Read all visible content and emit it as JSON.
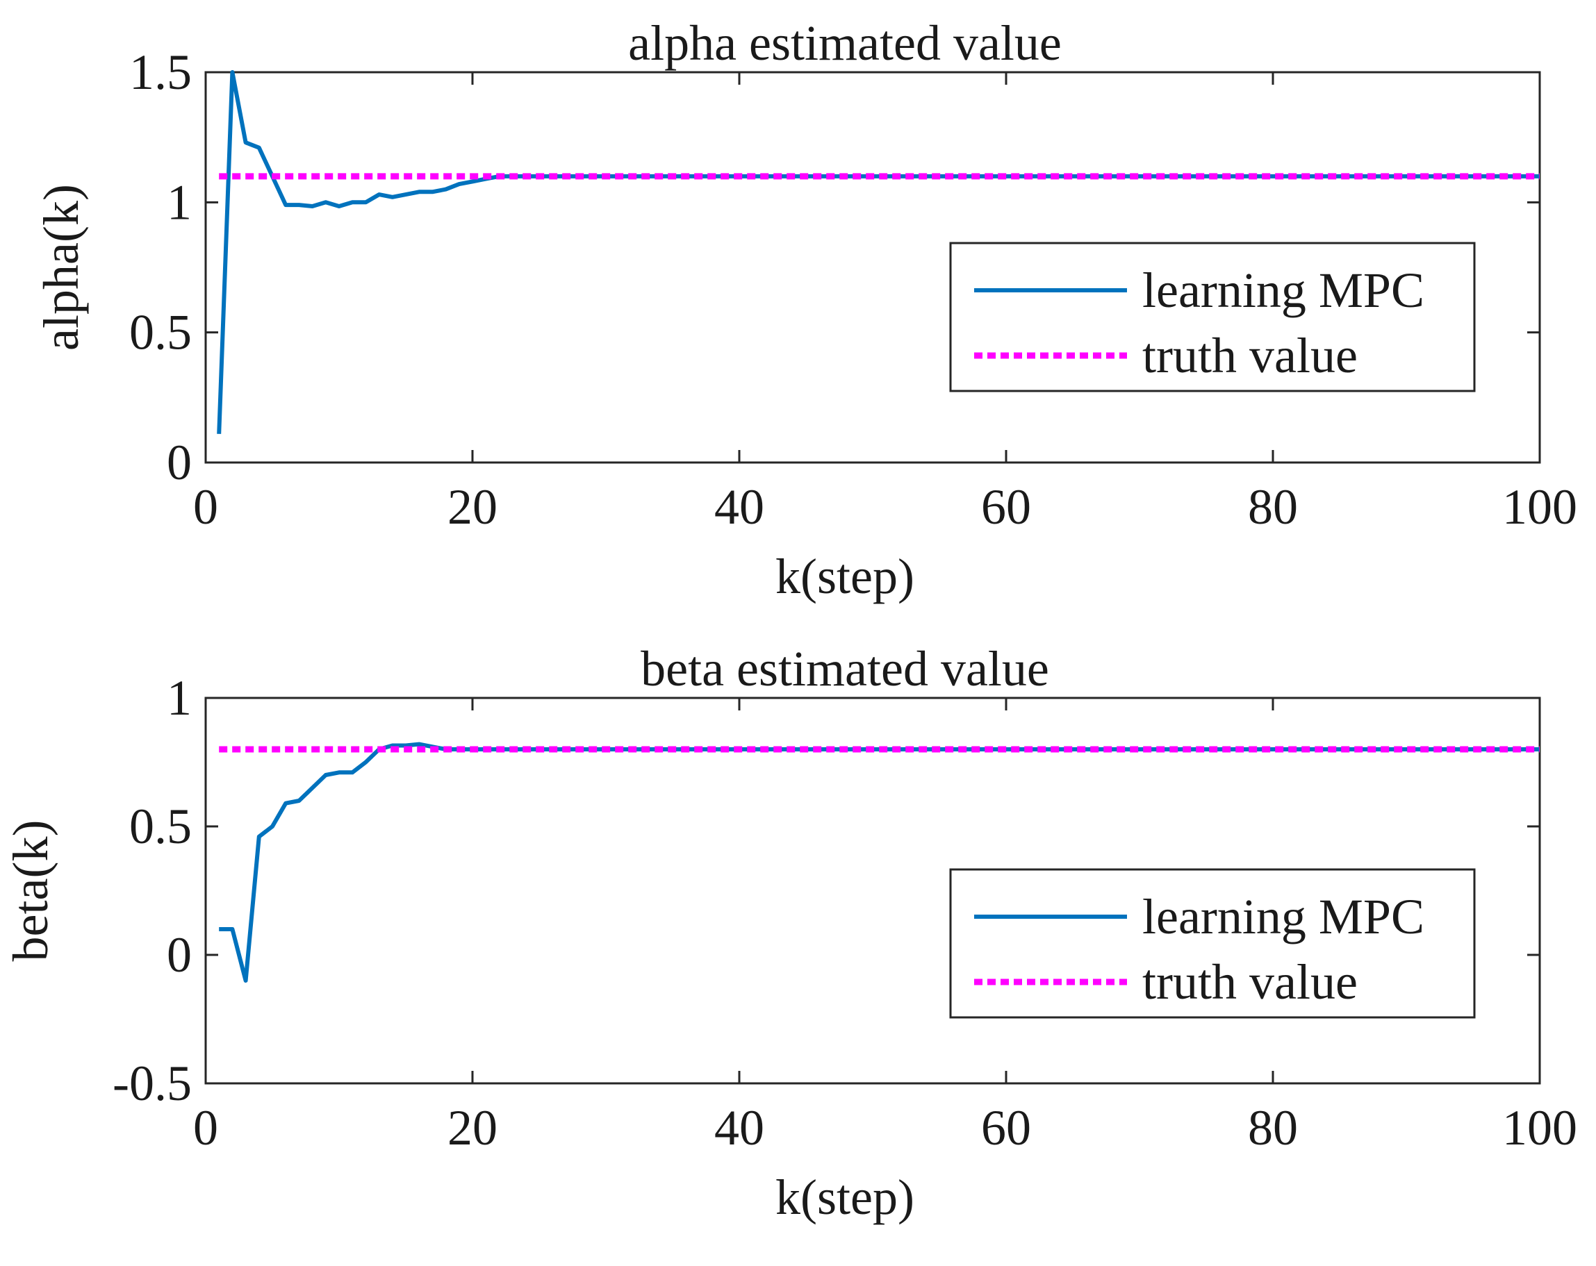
{
  "chart_data": [
    {
      "type": "line",
      "title": "alpha estimated value",
      "xlabel": "k(step)",
      "ylabel": "alpha(k)",
      "xlim": [
        0,
        100
      ],
      "ylim": [
        0,
        1.5
      ],
      "xticks": [
        0,
        20,
        40,
        60,
        80,
        100
      ],
      "xtick_labels": [
        "0",
        "20",
        "40",
        "60",
        "80",
        "100"
      ],
      "yticks": [
        0,
        0.5,
        1,
        1.5
      ],
      "ytick_labels": [
        "0",
        "0.5",
        "1",
        "1.5"
      ],
      "legend_position": "center-right",
      "series": [
        {
          "name": "learning MPC",
          "color": "#0072BD",
          "style": "solid",
          "x": [
            1,
            2,
            3,
            4,
            5,
            6,
            7,
            8,
            9,
            10,
            11,
            12,
            13,
            14,
            15,
            16,
            17,
            18,
            19,
            20,
            21,
            22,
            23,
            24,
            25,
            30,
            40,
            50,
            60,
            70,
            80,
            90,
            100
          ],
          "y": [
            0.11,
            1.5,
            1.23,
            1.21,
            1.1,
            0.99,
            0.99,
            0.985,
            1.0,
            0.985,
            1.0,
            1.0,
            1.03,
            1.02,
            1.03,
            1.04,
            1.04,
            1.05,
            1.07,
            1.08,
            1.09,
            1.1,
            1.1,
            1.1,
            1.1,
            1.1,
            1.1,
            1.1,
            1.1,
            1.1,
            1.1,
            1.1,
            1.1
          ]
        },
        {
          "name": "truth value",
          "color": "#FF00FF",
          "style": "dotted",
          "x": [
            1,
            100
          ],
          "y": [
            1.1,
            1.1
          ]
        }
      ]
    },
    {
      "type": "line",
      "title": "beta estimated value",
      "xlabel": "k(step)",
      "ylabel": "beta(k)",
      "xlim": [
        0,
        100
      ],
      "ylim": [
        -0.5,
        1
      ],
      "xticks": [
        0,
        20,
        40,
        60,
        80,
        100
      ],
      "xtick_labels": [
        "0",
        "20",
        "40",
        "60",
        "80",
        "100"
      ],
      "yticks": [
        -0.5,
        0,
        0.5,
        1
      ],
      "ytick_labels": [
        "-0.5",
        "0",
        "0.5",
        "1"
      ],
      "legend_position": "center-right",
      "series": [
        {
          "name": "learning MPC",
          "color": "#0072BD",
          "style": "solid",
          "x": [
            1,
            2,
            3,
            4,
            5,
            6,
            7,
            8,
            9,
            10,
            11,
            12,
            13,
            14,
            15,
            16,
            17,
            18,
            19,
            20,
            25,
            30,
            40,
            50,
            60,
            70,
            80,
            90,
            100
          ],
          "y": [
            0.1,
            0.1,
            -0.1,
            0.46,
            0.5,
            0.59,
            0.6,
            0.65,
            0.7,
            0.71,
            0.71,
            0.75,
            0.8,
            0.815,
            0.815,
            0.82,
            0.81,
            0.8,
            0.8,
            0.8,
            0.8,
            0.8,
            0.8,
            0.8,
            0.8,
            0.8,
            0.8,
            0.8,
            0.8
          ]
        },
        {
          "name": "truth value",
          "color": "#FF00FF",
          "style": "dotted",
          "x": [
            1,
            100
          ],
          "y": [
            0.8,
            0.8
          ]
        }
      ]
    }
  ]
}
